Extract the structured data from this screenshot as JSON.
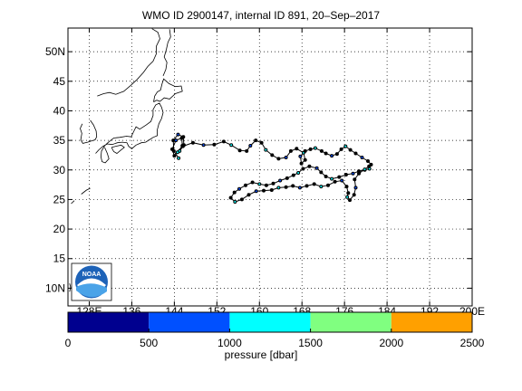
{
  "title": "WMO ID 2900147, internal ID 891, 20–Sep–2017",
  "map": {
    "lon_range": [
      124,
      200
    ],
    "lat_range": [
      7,
      54
    ],
    "lon_ticks": [
      {
        "value": 128,
        "label": "128E"
      },
      {
        "value": 136,
        "label": "136"
      },
      {
        "value": 144,
        "label": "144"
      },
      {
        "value": 152,
        "label": "152"
      },
      {
        "value": 160,
        "label": "160"
      },
      {
        "value": 168,
        "label": "168"
      },
      {
        "value": 176,
        "label": "176"
      },
      {
        "value": 184,
        "label": "184"
      },
      {
        "value": 192,
        "label": "192"
      },
      {
        "value": 200,
        "label": "200E"
      }
    ],
    "lat_ticks": [
      {
        "value": 10,
        "label": "10N"
      },
      {
        "value": 15,
        "label": "15"
      },
      {
        "value": 20,
        "label": "20"
      },
      {
        "value": 25,
        "label": "25"
      },
      {
        "value": 30,
        "label": "30"
      },
      {
        "value": 35,
        "label": "35"
      },
      {
        "value": 40,
        "label": "40"
      },
      {
        "value": 45,
        "label": "45"
      },
      {
        "value": 50,
        "label": "50N"
      }
    ],
    "grid": true,
    "logo_text": "NOAA"
  },
  "trajectory": [
    [
      144.8,
      32.0
    ],
    [
      143.9,
      33.2
    ],
    [
      143.8,
      35.0
    ],
    [
      144.7,
      36.0
    ],
    [
      145.7,
      35.6
    ],
    [
      145.8,
      34.2
    ],
    [
      145.0,
      33.2
    ],
    [
      144.0,
      32.4
    ],
    [
      143.6,
      33.5
    ],
    [
      144.3,
      35.0
    ],
    [
      145.4,
      35.4
    ],
    [
      145.5,
      34.1
    ],
    [
      144.6,
      33.0
    ],
    [
      145.6,
      34.0
    ],
    [
      147.5,
      34.6
    ],
    [
      149.5,
      34.2
    ],
    [
      151.5,
      34.3
    ],
    [
      153.3,
      34.8
    ],
    [
      154.7,
      34.2
    ],
    [
      156.3,
      33.3
    ],
    [
      157.6,
      33.2
    ],
    [
      158.3,
      34.1
    ],
    [
      159.3,
      35.0
    ],
    [
      160.4,
      34.6
    ],
    [
      161.2,
      33.4
    ],
    [
      162.4,
      32.5
    ],
    [
      163.6,
      31.9
    ],
    [
      165.0,
      32.1
    ],
    [
      165.9,
      33.2
    ],
    [
      167.0,
      33.6
    ],
    [
      168.3,
      32.9
    ],
    [
      168.6,
      31.7
    ],
    [
      167.9,
      31.1
    ],
    [
      167.7,
      32.3
    ],
    [
      168.6,
      33.2
    ],
    [
      169.6,
      33.5
    ],
    [
      170.5,
      33.7
    ],
    [
      171.7,
      33.2
    ],
    [
      172.5,
      32.8
    ],
    [
      173.6,
      32.4
    ],
    [
      174.6,
      32.7
    ],
    [
      175.4,
      33.5
    ],
    [
      176.2,
      34.0
    ],
    [
      177.1,
      33.4
    ],
    [
      178.1,
      32.8
    ],
    [
      179.3,
      32.1
    ],
    [
      180.4,
      31.5
    ],
    [
      181.0,
      30.9
    ],
    [
      180.7,
      30.2
    ],
    [
      179.8,
      30.0
    ],
    [
      178.7,
      29.8
    ],
    [
      177.6,
      29.4
    ],
    [
      176.3,
      29.2
    ],
    [
      175.0,
      28.8
    ],
    [
      173.6,
      28.5
    ],
    [
      172.5,
      28.9
    ],
    [
      171.6,
      29.6
    ],
    [
      170.8,
      30.3
    ],
    [
      169.4,
      30.6
    ],
    [
      168.2,
      30.2
    ],
    [
      167.3,
      29.5
    ],
    [
      166.4,
      29.1
    ],
    [
      165.2,
      28.6
    ],
    [
      163.9,
      28.2
    ],
    [
      162.6,
      27.7
    ],
    [
      161.3,
      27.4
    ],
    [
      160.0,
      27.6
    ],
    [
      158.7,
      27.9
    ],
    [
      157.4,
      27.4
    ],
    [
      156.2,
      26.8
    ],
    [
      155.3,
      26.2
    ],
    [
      154.6,
      25.3
    ],
    [
      155.4,
      24.6
    ],
    [
      156.7,
      25.0
    ],
    [
      158.0,
      25.8
    ],
    [
      159.4,
      26.4
    ],
    [
      160.8,
      26.5
    ],
    [
      162.3,
      26.6
    ],
    [
      163.6,
      27.0
    ],
    [
      165.0,
      27.1
    ],
    [
      166.3,
      27.3
    ],
    [
      167.6,
      27.0
    ],
    [
      168.9,
      27.3
    ],
    [
      170.3,
      27.6
    ],
    [
      171.6,
      27.2
    ],
    [
      172.9,
      27.4
    ],
    [
      174.2,
      28.0
    ],
    [
      175.5,
      28.2
    ],
    [
      176.4,
      27.2
    ],
    [
      176.7,
      26.1
    ],
    [
      176.5,
      25.4
    ],
    [
      177.0,
      24.9
    ],
    [
      177.8,
      25.8
    ],
    [
      178.1,
      27.0
    ],
    [
      177.9,
      28.4
    ],
    [
      178.7,
      29.4
    ],
    [
      179.8,
      30.1
    ],
    [
      180.6,
      30.6
    ]
  ],
  "coastlines": [
    [
      [
        129.2,
        32.8
      ],
      [
        129.8,
        33.4
      ],
      [
        130.6,
        34.0
      ],
      [
        131.4,
        34.4
      ],
      [
        132.3,
        34.3
      ],
      [
        133.3,
        34.6
      ],
      [
        134.2,
        34.7
      ],
      [
        135.1,
        34.6
      ],
      [
        135.4,
        34.0
      ],
      [
        136.0,
        33.6
      ],
      [
        136.8,
        34.2
      ],
      [
        137.8,
        34.6
      ],
      [
        138.6,
        34.7
      ],
      [
        139.3,
        35.1
      ],
      [
        140.0,
        35.5
      ],
      [
        140.8,
        35.8
      ],
      [
        140.8,
        36.8
      ],
      [
        141.1,
        37.8
      ],
      [
        141.6,
        38.7
      ],
      [
        141.9,
        39.7
      ],
      [
        141.6,
        40.6
      ],
      [
        141.2,
        41.3
      ],
      [
        140.5,
        41.0
      ],
      [
        140.0,
        40.2
      ],
      [
        140.0,
        39.2
      ],
      [
        139.6,
        38.2
      ],
      [
        138.7,
        37.6
      ],
      [
        137.5,
        36.9
      ],
      [
        136.8,
        37.3
      ],
      [
        136.3,
        36.4
      ],
      [
        135.9,
        35.6
      ],
      [
        135.0,
        35.7
      ],
      [
        133.7,
        35.5
      ],
      [
        132.6,
        35.4
      ],
      [
        131.5,
        34.6
      ],
      [
        130.9,
        34.1
      ],
      [
        130.3,
        33.2
      ],
      [
        130.2,
        32.2
      ],
      [
        130.4,
        31.4
      ],
      [
        131.0,
        31.2
      ],
      [
        131.7,
        31.9
      ],
      [
        131.4,
        32.8
      ],
      [
        130.9,
        33.8
      ]
    ],
    [
      [
        132.2,
        33.8
      ],
      [
        133.0,
        34.0
      ],
      [
        134.0,
        34.2
      ],
      [
        134.6,
        33.8
      ],
      [
        134.0,
        33.4
      ],
      [
        133.2,
        32.8
      ],
      [
        132.6,
        33.1
      ],
      [
        132.2,
        33.8
      ]
    ],
    [
      [
        140.1,
        41.5
      ],
      [
        140.7,
        41.8
      ],
      [
        141.3,
        41.6
      ],
      [
        142.1,
        42.2
      ],
      [
        143.1,
        42.0
      ],
      [
        144.2,
        42.9
      ],
      [
        145.5,
        43.3
      ],
      [
        145.3,
        44.2
      ],
      [
        144.2,
        44.1
      ],
      [
        143.0,
        44.6
      ],
      [
        142.0,
        45.4
      ],
      [
        141.7,
        44.6
      ],
      [
        141.4,
        43.5
      ],
      [
        140.8,
        43.2
      ],
      [
        140.3,
        42.5
      ],
      [
        140.1,
        41.5
      ]
    ],
    [
      [
        141.9,
        45.9
      ],
      [
        142.4,
        47.0
      ],
      [
        142.6,
        48.2
      ],
      [
        142.1,
        49.1
      ],
      [
        142.5,
        50.4
      ],
      [
        142.8,
        51.6
      ],
      [
        143.3,
        52.5
      ],
      [
        143.1,
        53.8
      ]
    ],
    [
      [
        129.5,
        42.5
      ],
      [
        130.7,
        42.9
      ],
      [
        131.8,
        43.1
      ],
      [
        133.0,
        42.8
      ],
      [
        134.5,
        43.3
      ],
      [
        135.8,
        44.3
      ],
      [
        137.0,
        45.3
      ],
      [
        138.2,
        46.5
      ],
      [
        139.0,
        47.5
      ],
      [
        140.0,
        48.4
      ],
      [
        140.6,
        49.6
      ],
      [
        140.6,
        50.9
      ],
      [
        141.3,
        52.2
      ],
      [
        140.9,
        53.3
      ],
      [
        139.8,
        53.9
      ]
    ],
    [
      [
        128.2,
        38.4
      ],
      [
        128.8,
        37.6
      ],
      [
        129.3,
        36.6
      ],
      [
        129.4,
        35.6
      ],
      [
        129.1,
        35.1
      ],
      [
        128.4,
        34.9
      ],
      [
        127.7,
        34.7
      ],
      [
        126.8,
        34.5
      ],
      [
        126.4,
        35.1
      ],
      [
        126.6,
        36.2
      ],
      [
        126.3,
        37.0
      ],
      [
        126.7,
        37.8
      ]
    ],
    [
      [
        126.5,
        25.9
      ],
      [
        127.5,
        26.6
      ],
      [
        128.2,
        26.9
      ]
    ],
    [
      [
        124.6,
        24.3
      ],
      [
        125.2,
        24.8
      ]
    ],
    [
      [
        124.3,
        10.8
      ],
      [
        124.5,
        10.2
      ],
      [
        124.3,
        9.4
      ]
    ]
  ],
  "pressure_colorbar": {
    "min": 0,
    "max": 2500,
    "ticks": [
      {
        "value": 0,
        "label": "0"
      },
      {
        "value": 500,
        "label": "500"
      },
      {
        "value": 1000,
        "label": "1000"
      },
      {
        "value": 1500,
        "label": "1500"
      },
      {
        "value": 2000,
        "label": "2000"
      },
      {
        "value": 2500,
        "label": "2500"
      }
    ],
    "colors": [
      "#00008f",
      "#0050ff",
      "#00ffff",
      "#80ff80",
      "#ffa000"
    ],
    "label": "pressure [dbar]"
  }
}
